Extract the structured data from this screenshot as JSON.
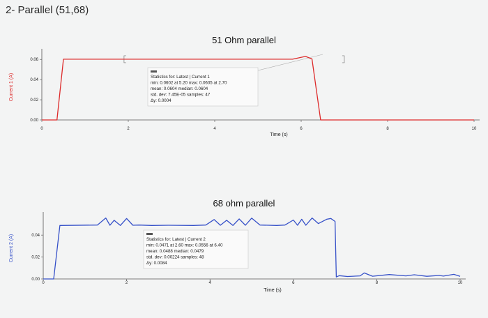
{
  "page": {
    "title": "2- Parallel (51,68)"
  },
  "chart_data": [
    {
      "type": "line",
      "title": "51 Ohm parallel",
      "xlabel": "Time (s)",
      "ylabel": "Current 1 (A)",
      "xlim": [
        0,
        10
      ],
      "ylim": [
        0,
        0.065
      ],
      "x_ticks": [
        "0",
        "2",
        "4",
        "6",
        "8",
        "10"
      ],
      "y_ticks": [
        "0.00",
        "0.02",
        "0.04",
        "0.06"
      ],
      "grid": false,
      "colors": {
        "line": "#dd2a2a",
        "axis_label": "#dd2a2a"
      },
      "series": [
        {
          "x": [
            0,
            0.35,
            0.5,
            5.8,
            6.1,
            6.25,
            6.45,
            10
          ],
          "y": [
            0,
            0,
            0.0602,
            0.0602,
            0.063,
            0.0605,
            0,
            0
          ]
        }
      ],
      "stats": {
        "header": "Statistics for: Latest | Current 1",
        "line1": "min: 0.0602 at 5.20  max: 0.0605 at 2.70",
        "line2": "mean: 0.0604  median: 0.0604",
        "line3": "std. dev: 7.45E-05  samples: 47",
        "line4": "Δy: 0.0004"
      }
    },
    {
      "type": "line",
      "title": "68 ohm parallel",
      "xlabel": "Time (s)",
      "ylabel": "Current 2 (A)",
      "xlim": [
        0,
        10
      ],
      "ylim": [
        0,
        0.056
      ],
      "x_ticks": [
        "0",
        "2",
        "4",
        "6",
        "8",
        "10"
      ],
      "y_ticks": [
        "0.00",
        "0.02",
        "0.04"
      ],
      "grid": false,
      "colors": {
        "line": "#3550c8",
        "axis_label": "#3550c8"
      },
      "series": [
        {
          "x": [
            0,
            0.25,
            0.4,
            1.3,
            1.5,
            1.6,
            1.7,
            1.85,
            2.0,
            2.15,
            2.3,
            2.6,
            3.0,
            3.6,
            3.9,
            4.1,
            4.25,
            4.4,
            4.55,
            4.7,
            4.85,
            5.0,
            5.2,
            5.6,
            5.8,
            6.0,
            6.1,
            6.2,
            6.3,
            6.45,
            6.6,
            6.8,
            6.9,
            7.0,
            7.03,
            7.1,
            7.3,
            7.6,
            7.7,
            7.9,
            8.3,
            8.7,
            8.9,
            9.2,
            9.5,
            9.6,
            9.85,
            10
          ],
          "y": [
            0,
            0,
            0.0488,
            0.0492,
            0.0556,
            0.049,
            0.0535,
            0.0488,
            0.0552,
            0.049,
            0.0492,
            0.0488,
            0.049,
            0.0488,
            0.0492,
            0.0542,
            0.049,
            0.0535,
            0.0488,
            0.0548,
            0.049,
            0.0555,
            0.0492,
            0.0488,
            0.0492,
            0.0538,
            0.049,
            0.0545,
            0.049,
            0.0556,
            0.0505,
            0.0545,
            0.0552,
            0.0525,
            0.0018,
            0.003,
            0.0022,
            0.0028,
            0.0055,
            0.0025,
            0.004,
            0.0028,
            0.0038,
            0.0024,
            0.0032,
            0.0026,
            0.0042,
            0.0024
          ]
        }
      ],
      "stats": {
        "header": "Statistics for: Latest | Current 2",
        "line1": "min: 0.0471 at 2.60  max: 0.0556 at 6.40",
        "line2": "mean: 0.0488  median: 0.0479",
        "line3": "std. dev: 0.00224  samples: 48",
        "line4": "Δy: 0.0084"
      }
    }
  ]
}
